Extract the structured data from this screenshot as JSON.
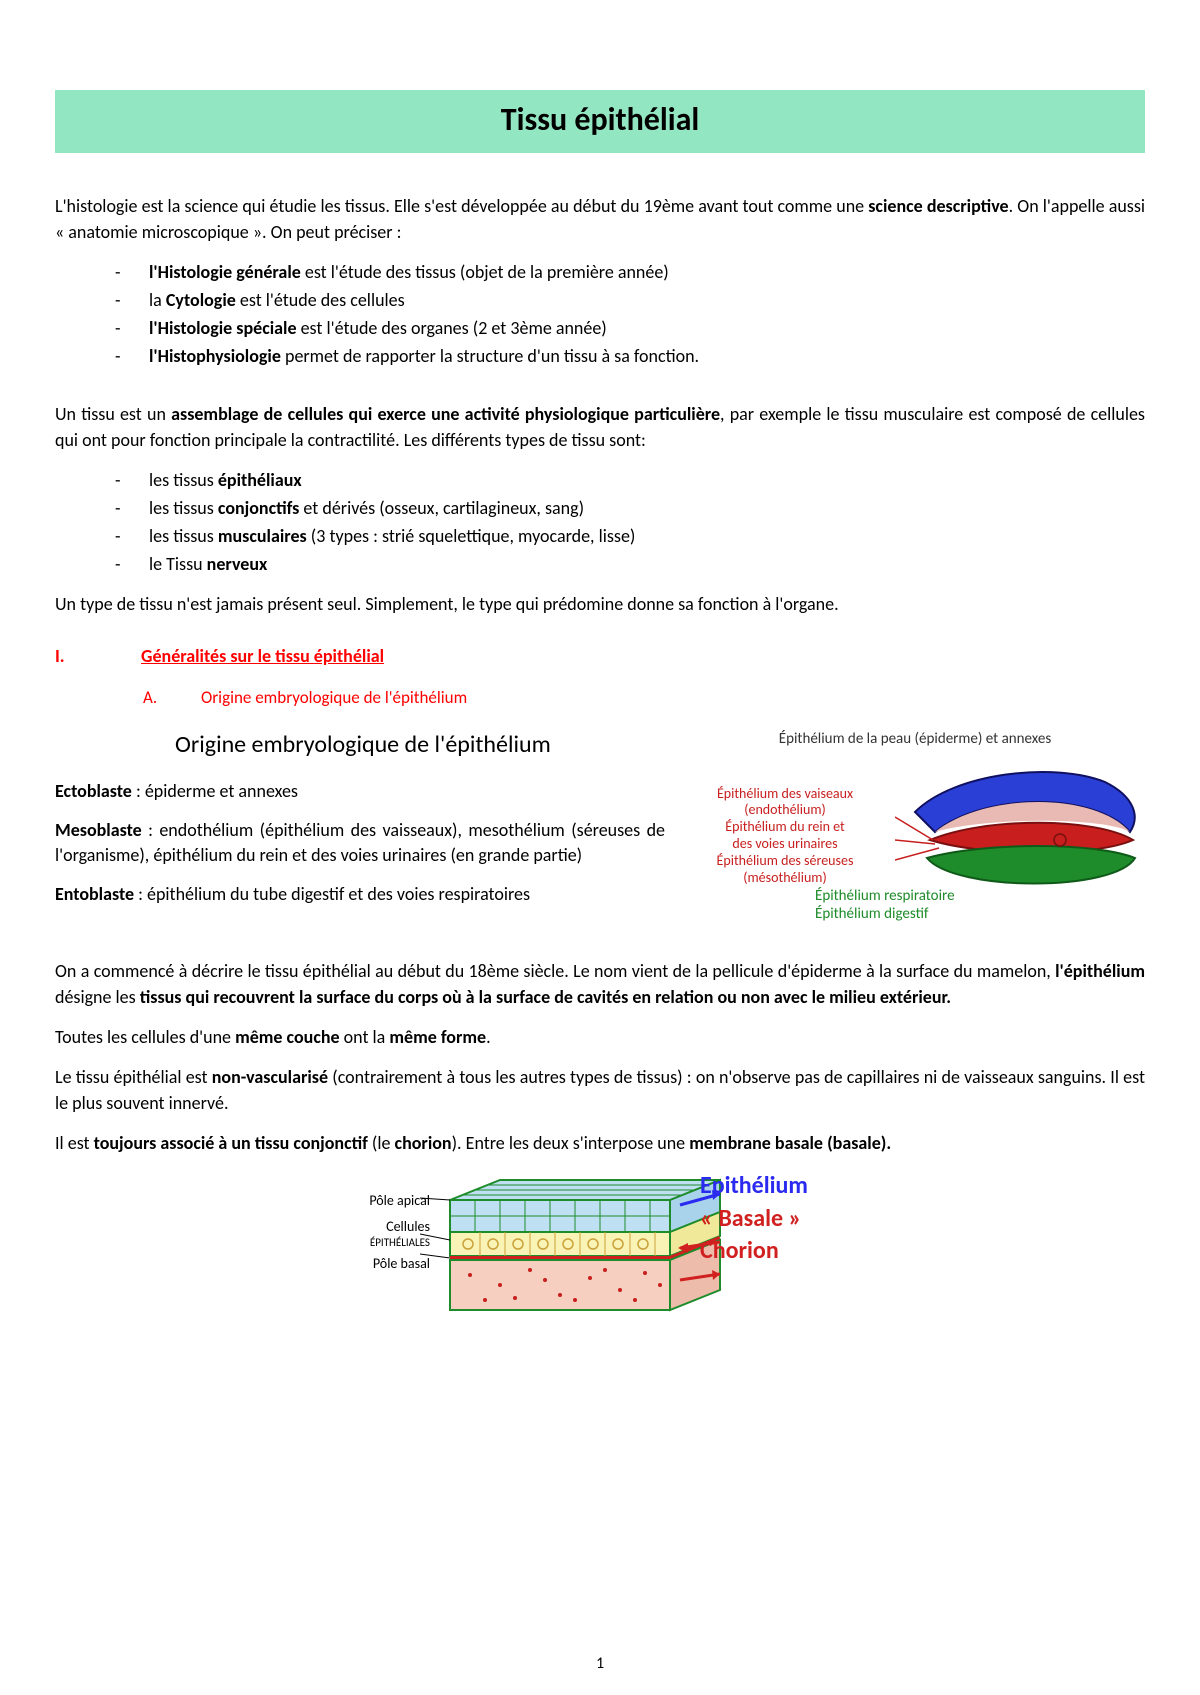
{
  "title": "Tissu épithélial",
  "intro": "L'histologie est la science qui étudie les tissus. Elle s'est développée au début du 19ème avant tout comme une <b>science descriptive</b>. On l'appelle aussi « anatomie microscopique ». On peut préciser :",
  "list1": [
    "<b>l'Histologie générale</b> est l'étude des tissus (objet de la première année)",
    "la <b>Cytologie</b> est l'étude des cellules",
    "<b>l'Histologie spéciale</b> est l'étude des organes (2 et 3ème année)",
    "<b>l'Histophysiologie</b> permet de rapporter la structure d'un tissu à sa fonction."
  ],
  "para2": "Un tissu est un <b>assemblage de cellules qui exerce une activité physiologique particulière</b>, par exemple le tissu musculaire est composé de cellules qui ont pour fonction principale la contractilité. Les différents types de tissu sont:",
  "list2": [
    "les tissus <b>épithéliaux</b>",
    "les tissus <b>conjonctifs</b> et dérivés (osseux, cartilagineux, sang)",
    "les tissus <b>musculaires</b> (3 types : strié squelettique, myocarde, lisse)",
    "le Tissu <b>nerveux</b>"
  ],
  "para3": "Un type de tissu n'est jamais présent seul. Simplement, le type qui prédomine donne sa fonction à l'organe.",
  "sec1_num": "I.",
  "sec1_label": "Généralités sur le tissu épithélial",
  "sub1_let": "A.",
  "sub1_label": "Origine embryologique de l'épithélium",
  "embryo": {
    "heading": "Origine embryologique de l'épithélium",
    "ecto": "<b>Ectoblaste</b> : épiderme et annexes",
    "meso": "<b>Mesoblaste</b> : endothélium (épithélium des vaisseaux), mesothélium (séreuses de l'organisme), épithélium du rein et des voies urinaires (en grande partie)",
    "ento": "<b>Entoblaste</b> : épithélium du tube digestif et des voies respiratoires",
    "fig_top_caption": "Épithélium de la peau (épiderme) et annexes",
    "left_labels": {
      "l1": "Épithélium des vaiseaux",
      "l2": "(endothélium)",
      "l3": "Épithélium du rein et",
      "l4": "des voies urinaires",
      "l5": "Épithélium des séreuses",
      "l6": "(mésothélium)"
    },
    "bottom_labels": {
      "b1": "Épithélium respiratoire",
      "b2": "Épithélium digestif"
    },
    "colors": {
      "blue": "#2a3fd6",
      "red": "#c81e1e",
      "green": "#1e8c2a",
      "skin": "#e9b9b3"
    }
  },
  "para4": "On a commencé à décrire le tissu épithélial au début du 18ème siècle. Le nom vient de la pellicule d'épiderme à la surface du mamelon, <b>l'épithélium</b> désigne les <b>tissus qui recouvrent la surface du corps où à la surface de cavités en relation ou non avec le milieu extérieur.</b>",
  "para5": "Toutes les cellules d'une <b>même couche</b> ont la <b>même forme</b>.",
  "para6": "Le tissu épithélial est <b>non-vascularisé</b> (contrairement à tous les autres types de tissus) : on n'observe pas de capillaires ni de vaisseaux sanguins. Il est le plus souvent innervé.",
  "para7": "Il est <b>toujours associé à un tissu conjonctif</b> (le <b>chorion</b>). Entre les deux s'interpose une <b>membrane basale (basale).</b>",
  "bottom_fig": {
    "left": {
      "l1": "Pôle apical",
      "l2": "Cellules",
      "l3": "ÉPITHÉLIALES",
      "l4": "Pôle basal"
    },
    "right": {
      "r1": "Epithélium",
      "r2": "« Basale »",
      "r3": "Chorion"
    },
    "colors": {
      "top": "#bfe0f2",
      "mid": "#f9f3b6",
      "bottom": "#f6cfc1",
      "basale": "#d02020",
      "border": "#1e8c2a"
    }
  },
  "page_number": "1"
}
